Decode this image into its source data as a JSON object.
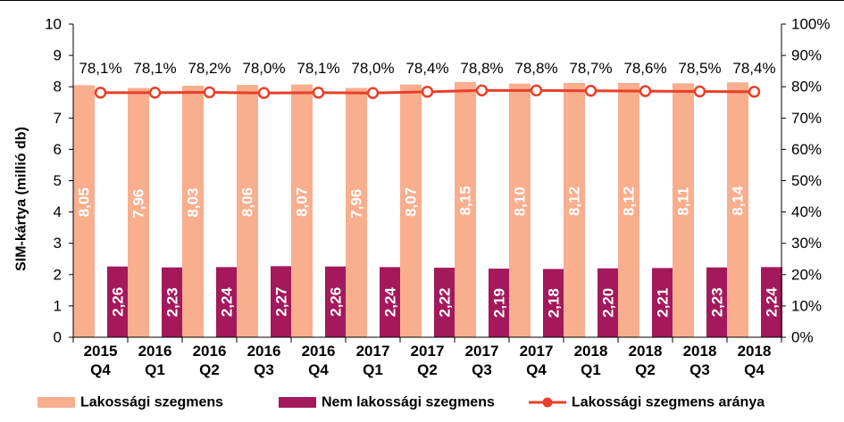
{
  "chart_data": {
    "type": "bar",
    "categories": [
      [
        "2015",
        "Q4"
      ],
      [
        "2016",
        "Q1"
      ],
      [
        "2016",
        "Q2"
      ],
      [
        "2016",
        "Q3"
      ],
      [
        "2016",
        "Q4"
      ],
      [
        "2017",
        "Q1"
      ],
      [
        "2017",
        "Q2"
      ],
      [
        "2017",
        "Q3"
      ],
      [
        "2017",
        "Q4"
      ],
      [
        "2018",
        "Q1"
      ],
      [
        "2018",
        "Q2"
      ],
      [
        "2018",
        "Q3"
      ],
      [
        "2018",
        "Q4"
      ]
    ],
    "ylabel": "SIM-kártya (millió db)",
    "ylim": [
      0,
      10
    ],
    "y_ticks": [
      "0",
      "1",
      "2",
      "3",
      "4",
      "5",
      "6",
      "7",
      "8",
      "9",
      "10"
    ],
    "y2lim": [
      0,
      100
    ],
    "y2_ticks": [
      "0%",
      "10%",
      "20%",
      "30%",
      "40%",
      "50%",
      "60%",
      "70%",
      "80%",
      "90%",
      "100%"
    ],
    "legend_position": "bottom",
    "grid": false,
    "series": [
      {
        "name": "Lakossági szegmens",
        "kind": "bar",
        "color": "#F9AE8E",
        "values": [
          8.05,
          7.96,
          8.03,
          8.06,
          8.07,
          7.96,
          8.07,
          8.15,
          8.1,
          8.12,
          8.12,
          8.11,
          8.14
        ],
        "labels": [
          "8,05",
          "7,96",
          "8,03",
          "8,06",
          "8,07",
          "7,96",
          "8,07",
          "8,15",
          "8,10",
          "8,12",
          "8,12",
          "8,11",
          "8,14"
        ]
      },
      {
        "name": "Nem lakossági szegmens",
        "kind": "bar",
        "color": "#A3195B",
        "values": [
          2.26,
          2.23,
          2.24,
          2.27,
          2.26,
          2.24,
          2.22,
          2.19,
          2.18,
          2.2,
          2.21,
          2.23,
          2.24
        ],
        "labels": [
          "2,26",
          "2,23",
          "2,24",
          "2,27",
          "2,26",
          "2,24",
          "2,22",
          "2,19",
          "2,18",
          "2,20",
          "2,21",
          "2,23",
          "2,24"
        ]
      },
      {
        "name": "Lakossági szegmens aránya",
        "kind": "line",
        "axis": "secondary",
        "color": "#E8402A",
        "values": [
          78.1,
          78.1,
          78.2,
          78.0,
          78.1,
          78.0,
          78.4,
          78.8,
          78.8,
          78.7,
          78.6,
          78.5,
          78.4
        ],
        "labels": [
          "78,1%",
          "78,1%",
          "78,2%",
          "78,0%",
          "78,1%",
          "78,0%",
          "78,4%",
          "78,8%",
          "78,8%",
          "78,7%",
          "78,6%",
          "78,5%",
          "78,4%"
        ]
      }
    ]
  }
}
